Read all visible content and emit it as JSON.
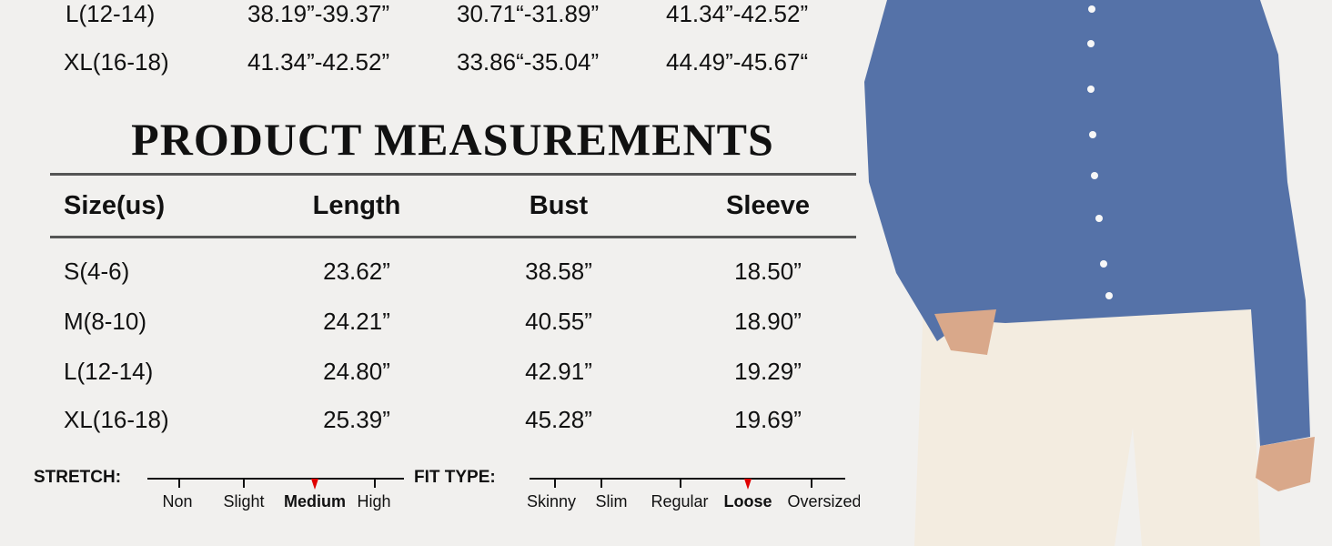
{
  "body_sizes": {
    "rows": [
      {
        "size": "L(12-14)",
        "c1": "38.19”-39.37”",
        "c2": "30.71“-31.89”",
        "c3": "41.34”-42.52”"
      },
      {
        "size": "XL(16-18)",
        "c1": "41.34”-42.52”",
        "c2": "33.86“-35.04”",
        "c3": "44.49”-45.67“"
      }
    ]
  },
  "product": {
    "title": "PRODUCT MEASUREMENTS",
    "headers": [
      "Size(us)",
      "Length",
      "Bust",
      "Sleeve"
    ],
    "rows": [
      [
        "S(4-6)",
        "23.62”",
        "38.58”",
        "18.50”"
      ],
      [
        "M(8-10)",
        "24.21”",
        "40.55”",
        "18.90”"
      ],
      [
        "L(12-14)",
        "24.80”",
        "42.91”",
        "19.29”"
      ],
      [
        "XL(16-18)",
        "25.39”",
        "45.28”",
        "19.69”"
      ]
    ]
  },
  "stretch": {
    "label": "STRETCH:",
    "options": [
      "Non",
      "Slight",
      "Medium",
      "High"
    ],
    "selected": "Medium"
  },
  "fit": {
    "label": "FIT TYPE:",
    "options": [
      "Skinny",
      "Slim",
      "Regular",
      "Loose",
      "Oversized"
    ],
    "selected": "Loose"
  },
  "colors": {
    "marker": "#e00000",
    "cardigan": "#5572a8",
    "pants": "#f3ece0"
  }
}
